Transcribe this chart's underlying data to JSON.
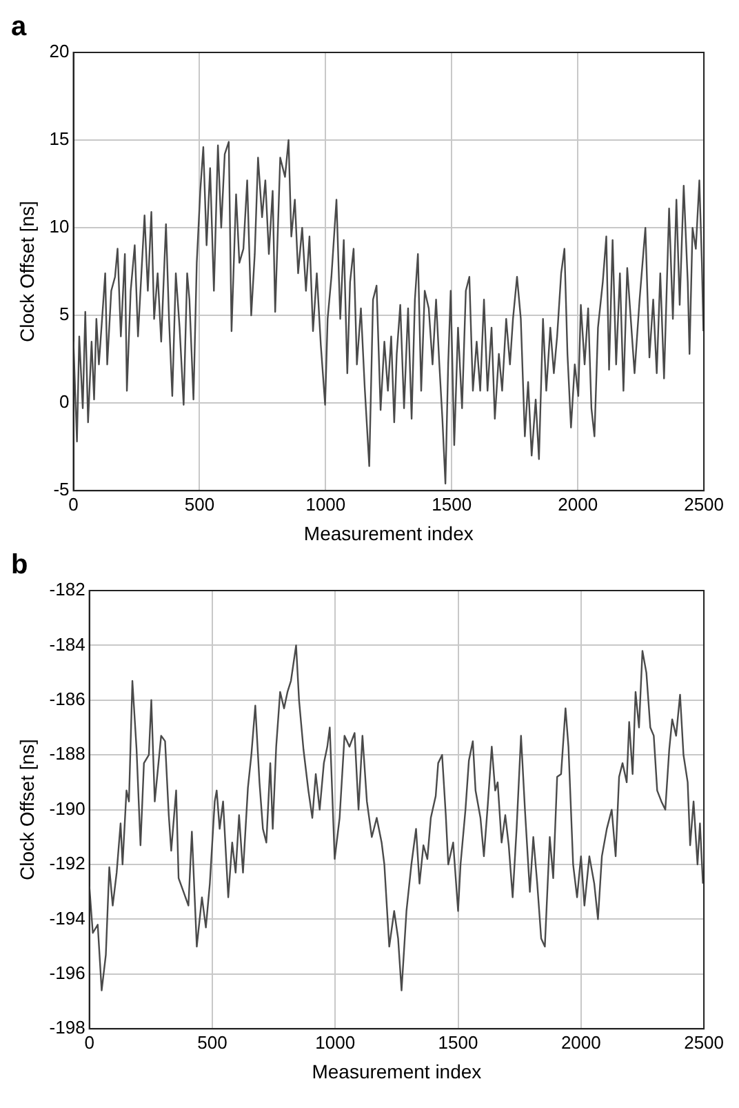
{
  "chart_data": [
    {
      "type": "line",
      "title": "a",
      "xlabel": "Measurement index",
      "ylabel": "Clock Offset [ns]",
      "xlim": [
        0,
        2500
      ],
      "ylim": [
        -5,
        20
      ],
      "xticks": [
        0,
        500,
        1000,
        1500,
        2000,
        2500
      ],
      "yticks": [
        -5,
        0,
        5,
        10,
        15,
        20
      ],
      "grid": true,
      "series": [
        {
          "color": "#4a4a4a",
          "x": [
            0,
            14,
            23,
            37,
            47,
            58,
            72,
            82,
            91,
            101,
            117,
            126,
            134,
            150,
            165,
            175,
            188,
            204,
            212,
            227,
            243,
            256,
            282,
            295,
            309,
            320,
            334,
            348,
            367,
            379,
            392,
            406,
            421,
            437,
            451,
            460,
            476,
            489,
            503,
            515,
            528,
            542,
            557,
            573,
            586,
            600,
            616,
            627,
            645,
            658,
            674,
            689,
            705,
            719,
            732,
            748,
            761,
            775,
            790,
            800,
            820,
            839,
            853,
            864,
            878,
            891,
            907,
            922,
            936,
            950,
            965,
            981,
            998,
            1008,
            1023,
            1043,
            1058,
            1072,
            1086,
            1097,
            1111,
            1124,
            1140,
            1155,
            1173,
            1188,
            1202,
            1218,
            1233,
            1247,
            1260,
            1272,
            1282,
            1296,
            1311,
            1327,
            1341,
            1354,
            1366,
            1379,
            1393,
            1409,
            1424,
            1438,
            1451,
            1463,
            1475,
            1486,
            1496,
            1510,
            1525,
            1541,
            1556,
            1570,
            1584,
            1599,
            1613,
            1628,
            1642,
            1658,
            1671,
            1687,
            1700,
            1716,
            1731,
            1743,
            1759,
            1774,
            1790,
            1803,
            1817,
            1833,
            1846,
            1862,
            1875,
            1891,
            1905,
            1918,
            1934,
            1947,
            1959,
            1973,
            1988,
            2002,
            2012,
            2027,
            2041,
            2054,
            2066,
            2080,
            2099,
            2113,
            2124,
            2138,
            2152,
            2167,
            2181,
            2196,
            2210,
            2225,
            2245,
            2268,
            2284,
            2299,
            2313,
            2327,
            2342,
            2362,
            2377,
            2391,
            2404,
            2420,
            2436,
            2443,
            2455,
            2468,
            2482,
            2492,
            2498
          ],
          "values": [
            3.5,
            -2.2,
            3.8,
            -0.3,
            5.2,
            -1.1,
            3.5,
            0.2,
            4.8,
            2.2,
            5.5,
            7.4,
            2.2,
            6.4,
            7.2,
            8.8,
            3.8,
            8.5,
            0.7,
            6.4,
            9,
            3.8,
            10.7,
            6.4,
            10.9,
            4.8,
            7.4,
            3.5,
            10.2,
            4.8,
            0.4,
            7.4,
            4.3,
            -0.1,
            7.4,
            5.9,
            0.2,
            8,
            12.1,
            14.6,
            9,
            13.4,
            6.4,
            14.7,
            10,
            14.2,
            14.9,
            4.1,
            11.9,
            8,
            8.8,
            12.7,
            5,
            8.5,
            14,
            10.6,
            12.7,
            8.5,
            12.1,
            5.2,
            14,
            12.9,
            15,
            9.5,
            11.6,
            7.4,
            10,
            6.4,
            9.5,
            4.1,
            7.4,
            3.3,
            -0.1,
            4.8,
            7.2,
            11.6,
            4.8,
            9.3,
            1.7,
            6.9,
            8.8,
            2.2,
            5.4,
            0.9,
            -3.6,
            5.9,
            6.7,
            -0.4,
            3.5,
            0.7,
            3.8,
            -1.1,
            2.8,
            5.6,
            -0.3,
            5.4,
            -0.9,
            5.9,
            8.5,
            0.7,
            6.4,
            5.4,
            2.2,
            5.9,
            2.2,
            -0.9,
            -4.6,
            2.2,
            6.4,
            -2.4,
            4.3,
            -0.3,
            6.4,
            7.2,
            0.7,
            3.5,
            0.7,
            5.9,
            0.7,
            4.3,
            -0.9,
            2.8,
            0.7,
            4.8,
            2.2,
            4.8,
            7.2,
            4.8,
            -1.9,
            1.2,
            -3,
            0.2,
            -3.2,
            4.8,
            0.7,
            4.3,
            1.7,
            3.8,
            7.4,
            8.8,
            2.8,
            -1.4,
            2.2,
            0.4,
            5.6,
            2.2,
            5.4,
            -0.3,
            -1.9,
            4.3,
            6.9,
            9.5,
            1.9,
            9.3,
            2.2,
            7.4,
            0.7,
            7.7,
            4.8,
            1.7,
            5.9,
            10,
            2.6,
            5.9,
            1.7,
            7.4,
            1.4,
            11.1,
            4.8,
            11.6,
            5.6,
            12.4,
            6.9,
            2.8,
            10,
            8.8,
            12.7,
            8,
            4.1
          ]
        }
      ]
    },
    {
      "type": "line",
      "title": "b",
      "xlabel": "Measurement index",
      "ylabel": "Clock Offset [ns]",
      "xlim": [
        0,
        2500
      ],
      "ylim": [
        -198,
        -182
      ],
      "xticks": [
        0,
        500,
        1000,
        1500,
        2000,
        2500
      ],
      "yticks": [
        -198,
        -196,
        -194,
        -192,
        -190,
        -188,
        -186,
        -184,
        -182
      ],
      "grid": true,
      "series": [
        {
          "color": "#4a4a4a",
          "x": [
            0,
            14,
            34,
            50,
            67,
            81,
            95,
            111,
            127,
            135,
            151,
            161,
            175,
            192,
            208,
            222,
            242,
            252,
            266,
            292,
            308,
            323,
            333,
            353,
            363,
            383,
            403,
            417,
            437,
            458,
            474,
            490,
            510,
            518,
            530,
            544,
            565,
            581,
            595,
            609,
            625,
            645,
            659,
            675,
            692,
            706,
            720,
            736,
            746,
            760,
            776,
            792,
            806,
            820,
            841,
            853,
            871,
            891,
            907,
            921,
            937,
            954,
            968,
            978,
            998,
            1018,
            1038,
            1058,
            1079,
            1095,
            1111,
            1129,
            1149,
            1169,
            1189,
            1200,
            1220,
            1240,
            1256,
            1270,
            1290,
            1310,
            1329,
            1343,
            1359,
            1375,
            1389,
            1409,
            1419,
            1435,
            1450,
            1460,
            1480,
            1500,
            1510,
            1530,
            1544,
            1560,
            1571,
            1591,
            1605,
            1621,
            1637,
            1651,
            1661,
            1677,
            1692,
            1706,
            1722,
            1738,
            1756,
            1772,
            1792,
            1806,
            1822,
            1838,
            1853,
            1873,
            1887,
            1903,
            1919,
            1937,
            1949,
            1968,
            1984,
            2000,
            2014,
            2034,
            2054,
            2069,
            2085,
            2105,
            2125,
            2141,
            2155,
            2169,
            2186,
            2196,
            2210,
            2222,
            2236,
            2250,
            2266,
            2282,
            2296,
            2310,
            2327,
            2343,
            2359,
            2371,
            2387,
            2403,
            2417,
            2434,
            2444,
            2458,
            2474,
            2484,
            2496
          ],
          "values": [
            -192.8,
            -194.5,
            -194.2,
            -196.6,
            -195.3,
            -192.1,
            -193.5,
            -192.3,
            -190.5,
            -192,
            -189.3,
            -189.7,
            -185.3,
            -187.8,
            -191.3,
            -188.3,
            -188,
            -186,
            -189.7,
            -187.3,
            -187.5,
            -190.2,
            -191.5,
            -189.3,
            -192.5,
            -193,
            -193.5,
            -190.8,
            -195,
            -193.2,
            -194.3,
            -192.7,
            -189.7,
            -189.3,
            -190.7,
            -189.7,
            -193.2,
            -191.2,
            -192.3,
            -190.2,
            -192.3,
            -189.2,
            -188,
            -186.2,
            -189,
            -190.7,
            -191.2,
            -188.3,
            -190.7,
            -187.7,
            -185.7,
            -186.3,
            -185.7,
            -185.3,
            -184,
            -186,
            -187.8,
            -189.3,
            -190.3,
            -188.7,
            -190,
            -188.3,
            -187.7,
            -187,
            -191.8,
            -190.3,
            -187.3,
            -187.7,
            -187.2,
            -190,
            -187.3,
            -189.7,
            -191,
            -190.3,
            -191.2,
            -192,
            -195,
            -193.7,
            -194.7,
            -196.6,
            -193.7,
            -192,
            -190.7,
            -192.7,
            -191.3,
            -191.8,
            -190.3,
            -189.5,
            -188.3,
            -188,
            -190.2,
            -192,
            -191.2,
            -193.7,
            -192,
            -190,
            -188.2,
            -187.5,
            -189.3,
            -190.3,
            -191.7,
            -189.8,
            -187.7,
            -189.3,
            -189,
            -191.2,
            -190.2,
            -191.3,
            -193.2,
            -190.7,
            -187.3,
            -190,
            -193,
            -191,
            -192.7,
            -194.7,
            -195,
            -191,
            -192.5,
            -188.8,
            -188.7,
            -186.3,
            -187.7,
            -192,
            -193.2,
            -191.7,
            -193.5,
            -191.7,
            -192.7,
            -194,
            -191.7,
            -190.7,
            -190,
            -191.7,
            -188.8,
            -188.3,
            -189,
            -186.8,
            -188.7,
            -185.7,
            -187,
            -184.2,
            -185,
            -187,
            -187.3,
            -189.3,
            -189.7,
            -190,
            -187.8,
            -186.7,
            -187.3,
            -185.8,
            -188,
            -189,
            -191.3,
            -189.7,
            -192,
            -190.5,
            -192.7
          ]
        }
      ]
    }
  ]
}
